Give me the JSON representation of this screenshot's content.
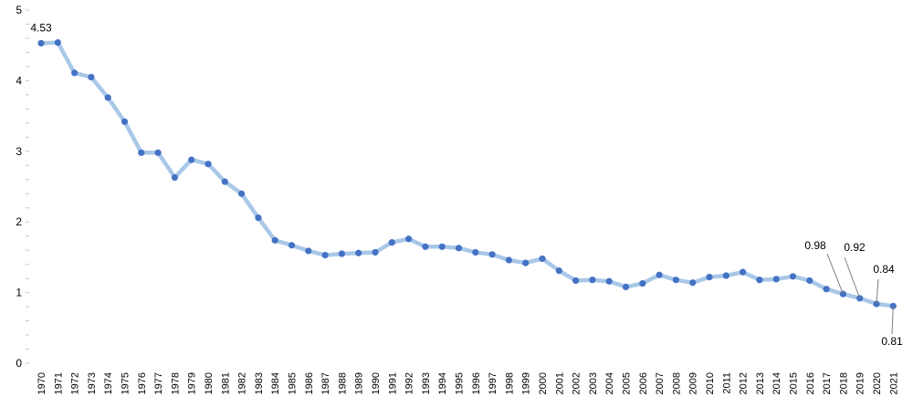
{
  "chart_data": {
    "type": "line",
    "title": "",
    "xlabel": "",
    "ylabel": "",
    "ylim": [
      0,
      5
    ],
    "yticks": [
      "0",
      "1",
      "2",
      "3",
      "4",
      "5"
    ],
    "x": [
      "1970",
      "1971",
      "1972",
      "1973",
      "1974",
      "1975",
      "1976",
      "1977",
      "1978",
      "1979",
      "1980",
      "1981",
      "1982",
      "1983",
      "1984",
      "1985",
      "1986",
      "1987",
      "1988",
      "1989",
      "1990",
      "1991",
      "1992",
      "1993",
      "1994",
      "1995",
      "1996",
      "1997",
      "1998",
      "1999",
      "2000",
      "2001",
      "2002",
      "2003",
      "2004",
      "2005",
      "2006",
      "2007",
      "2008",
      "2009",
      "2010",
      "2011",
      "2012",
      "2013",
      "2014",
      "2015",
      "2016",
      "2017",
      "2018",
      "2019",
      "2020",
      "2021"
    ],
    "series": [
      {
        "values": [
          4.53,
          4.54,
          4.11,
          4.05,
          3.76,
          3.42,
          2.98,
          2.98,
          2.63,
          2.88,
          2.82,
          2.57,
          2.4,
          2.06,
          1.74,
          1.67,
          1.59,
          1.53,
          1.55,
          1.56,
          1.57,
          1.71,
          1.76,
          1.65,
          1.65,
          1.63,
          1.57,
          1.54,
          1.46,
          1.42,
          1.48,
          1.31,
          1.17,
          1.18,
          1.16,
          1.08,
          1.13,
          1.25,
          1.18,
          1.14,
          1.22,
          1.24,
          1.29,
          1.18,
          1.19,
          1.23,
          1.17,
          1.05,
          0.98,
          0.92,
          0.84,
          0.81
        ]
      }
    ],
    "line_color": "#a9c8e8",
    "marker_color": "#4472c4",
    "grid": false,
    "annotations": [
      {
        "text": "4.53",
        "index": 0
      },
      {
        "text": "0.98",
        "index": 48
      },
      {
        "text": "0.92",
        "index": 49
      },
      {
        "text": "0.84",
        "index": 50
      },
      {
        "text": "0.81",
        "index": 51
      }
    ]
  }
}
